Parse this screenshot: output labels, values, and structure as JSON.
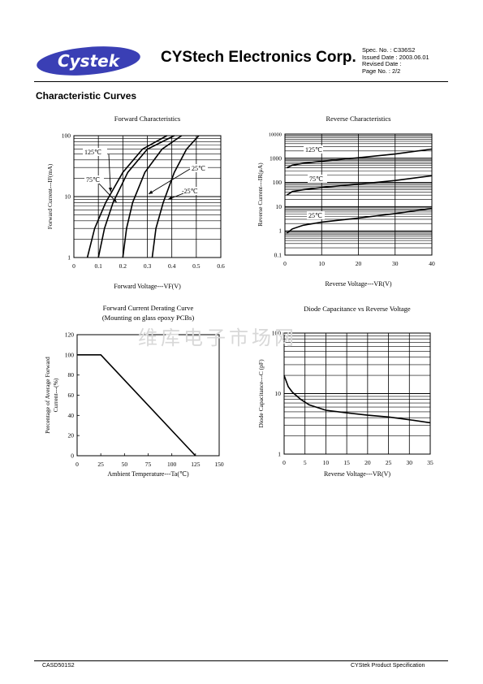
{
  "header": {
    "logo_text": "Cystek",
    "company": "CYStech Electronics Corp.",
    "spec_no": "Spec. No. : C336S2",
    "issued_date": "Issued Date : 2003.06.01",
    "revised_date": "Revised Date :",
    "page_no": "Page No. : 2/2"
  },
  "section_title": "Characteristic Curves",
  "watermark": "维库电子市场网",
  "footer": {
    "left": "CASD501S2",
    "right": "CYStek Product Specification"
  },
  "colors": {
    "ink": "#000000",
    "logo_fill": "#3a3fb5",
    "watermark": "#d8d8d8"
  },
  "chart_data": [
    {
      "type": "line",
      "title": "Forward Characteristics",
      "xlabel": "Forward Voltage---VF(V)",
      "ylabel": "Forward Current---IF(mA)",
      "xlim": [
        0,
        0.6
      ],
      "ylim": [
        1,
        100
      ],
      "yscale": "log",
      "xticks": [
        "0",
        "0.1",
        "0.2",
        "0.3",
        "0.4",
        "0.5",
        "0.6"
      ],
      "yticks": [
        "1",
        "10",
        "100"
      ],
      "grid": true,
      "series": [
        {
          "name": "125℃",
          "x": [
            0.055,
            0.085,
            0.13,
            0.2,
            0.28,
            0.38
          ],
          "y": [
            1,
            3,
            8,
            25,
            60,
            100
          ]
        },
        {
          "name": "75℃",
          "x": [
            0.1,
            0.125,
            0.16,
            0.22,
            0.3,
            0.41
          ],
          "y": [
            1,
            3,
            8,
            25,
            60,
            100
          ]
        },
        {
          "name": "25℃",
          "x": [
            0.2,
            0.215,
            0.24,
            0.29,
            0.36,
            0.44
          ],
          "y": [
            1,
            3,
            8,
            25,
            60,
            100
          ]
        },
        {
          "name": "-25℃",
          "x": [
            0.32,
            0.335,
            0.365,
            0.41,
            0.46,
            0.51
          ],
          "y": [
            1,
            3,
            8,
            25,
            60,
            100
          ]
        }
      ],
      "labels": [
        "125℃",
        "75℃",
        "25℃",
        "-25℃"
      ]
    },
    {
      "type": "line",
      "title": "Reverse Characteristics",
      "xlabel": "Reverse Voltage---VR(V)",
      "ylabel": "Reverse Current---IR(μA)",
      "xlim": [
        0,
        40
      ],
      "ylim": [
        0.1,
        10000
      ],
      "yscale": "log",
      "xticks": [
        "0",
        "10",
        "20",
        "30",
        "40"
      ],
      "yticks": [
        "0.1",
        "1",
        "10",
        "100",
        "1000",
        "10000"
      ],
      "grid": true,
      "series": [
        {
          "name": "125℃",
          "x": [
            0.5,
            2,
            5,
            10,
            20,
            30,
            40
          ],
          "y": [
            400,
            520,
            620,
            760,
            1050,
            1500,
            2400
          ]
        },
        {
          "name": "75℃",
          "x": [
            0.5,
            2,
            5,
            10,
            20,
            30,
            40
          ],
          "y": [
            30,
            42,
            50,
            62,
            85,
            120,
            190
          ]
        },
        {
          "name": "25℃",
          "x": [
            0.5,
            2,
            5,
            10,
            20,
            30,
            40
          ],
          "y": [
            0.8,
            1.2,
            1.7,
            2.3,
            3.4,
            5.2,
            8.5
          ]
        }
      ],
      "labels": [
        "125℃",
        "75℃",
        "25℃"
      ]
    },
    {
      "type": "line",
      "title": "Forward Current Derating Curve",
      "subtitle": "(Mounting on glass epoxy PCBs)",
      "xlabel": "Ambient Temperature---Ta(℃)",
      "ylabel_line1": "Percentage of Average Forward",
      "ylabel_line2": "Current---(%)",
      "xlim": [
        0,
        150
      ],
      "ylim": [
        0,
        120
      ],
      "xticks": [
        "0",
        "25",
        "50",
        "75",
        "100",
        "125",
        "150"
      ],
      "yticks": [
        "0",
        "20",
        "40",
        "60",
        "80",
        "100",
        "120"
      ],
      "grid": false,
      "series": [
        {
          "x": [
            0,
            25,
            125
          ],
          "y": [
            100,
            100,
            0
          ]
        }
      ]
    },
    {
      "type": "line",
      "title": "Diode Capacitance vs Reverse Voltage",
      "xlabel": "Reverse Voltage---VR(V)",
      "ylabel": "Diode Capacitance---C (pF)",
      "xlim": [
        0,
        35
      ],
      "ylim": [
        1,
        100
      ],
      "yscale": "log",
      "xticks": [
        "0",
        "5",
        "10",
        "15",
        "20",
        "25",
        "30",
        "35"
      ],
      "yticks": [
        "1",
        "10",
        "100"
      ],
      "grid": true,
      "series": [
        {
          "x": [
            0,
            1,
            2,
            4,
            6,
            10,
            15,
            20,
            25,
            30,
            35
          ],
          "y": [
            20,
            13,
            10.5,
            8,
            6.5,
            5.3,
            4.8,
            4.4,
            4.1,
            3.7,
            3.3
          ]
        }
      ]
    }
  ]
}
